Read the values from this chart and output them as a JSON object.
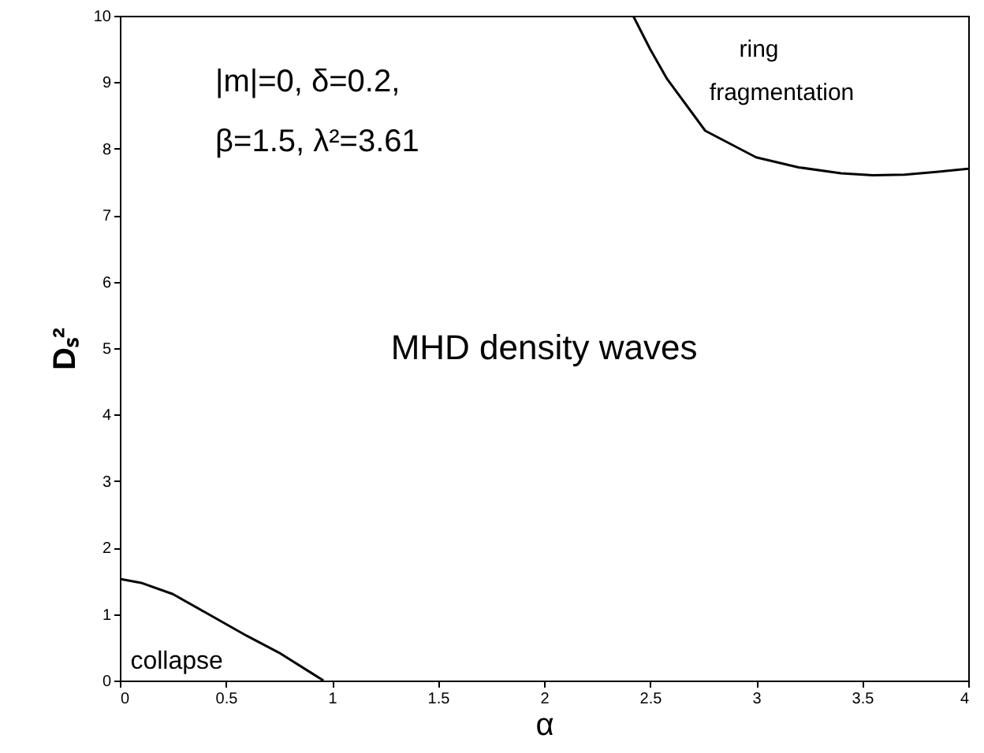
{
  "chart_data": {
    "type": "line",
    "xlabel": "α",
    "ylabel": "Dₛ²",
    "annotations": [
      "|m|=0, δ=0.2,",
      "β=1.5, λ²=3.61",
      "MHD density waves",
      "collapse",
      "ring",
      "fragmentation"
    ],
    "series": [
      {
        "color": "#000000",
        "x": [
          0,
          0.1,
          0.25,
          0.4,
          0.5,
          0.6,
          0.75,
          0.9,
          0.96
        ],
        "values": [
          1.53,
          1.47,
          1.3,
          1.03,
          0.85,
          0.67,
          0.42,
          0.12,
          0
        ]
      },
      {
        "color": "#000000",
        "x": [
          2.42,
          2.5,
          2.58,
          2.76,
          3.0,
          3.2,
          3.4,
          3.55,
          3.7,
          3.85,
          4.0
        ],
        "values": [
          10,
          9.5,
          9.05,
          8.27,
          7.87,
          7.72,
          7.63,
          7.6,
          7.61,
          7.65,
          7.7
        ]
      }
    ],
    "xlim": [
      0,
      4
    ],
    "ylim": [
      0,
      10
    ],
    "xticks": [
      0,
      0.5,
      1,
      1.5,
      2,
      2.5,
      3,
      3.5,
      4
    ],
    "yticks": [
      0,
      1,
      2,
      3,
      4,
      5,
      6,
      7,
      8,
      9,
      10
    ],
    "grid": false,
    "marker": "none",
    "line_style": "solid"
  }
}
